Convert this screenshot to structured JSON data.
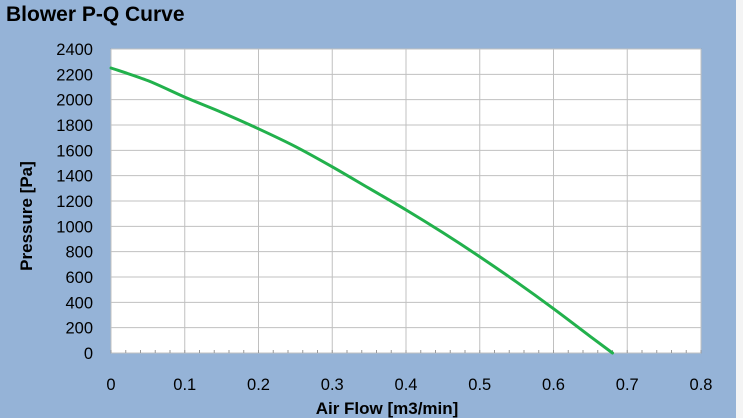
{
  "chart_data": {
    "type": "line",
    "title": "Blower P-Q Curve",
    "xlabel": "Air Flow [m3/min]",
    "ylabel": "Pressure [Pa]",
    "xlim": [
      0,
      0.8
    ],
    "ylim": [
      0,
      2400
    ],
    "xticks": [
      "0",
      "0.1",
      "0.2",
      "0.3",
      "0.4",
      "0.5",
      "0.6",
      "0.7",
      "0.8"
    ],
    "yticks": [
      "0",
      "200",
      "400",
      "600",
      "800",
      "1000",
      "1200",
      "1400",
      "1600",
      "1800",
      "2000",
      "2200",
      "2400"
    ],
    "grid": true,
    "series": [
      {
        "color": "#22b14c",
        "x": [
          0,
          0.05,
          0.1,
          0.15,
          0.2,
          0.25,
          0.3,
          0.35,
          0.4,
          0.45,
          0.5,
          0.55,
          0.6,
          0.65,
          0.68
        ],
        "y": [
          2250,
          2150,
          2020,
          1900,
          1770,
          1630,
          1470,
          1300,
          1130,
          950,
          760,
          560,
          350,
          130,
          0
        ]
      }
    ]
  },
  "colors": {
    "frame_background": "#95b3d7",
    "plot_background": "#ffffff",
    "grid": "#c0c0c0",
    "line": "#22b14c"
  }
}
